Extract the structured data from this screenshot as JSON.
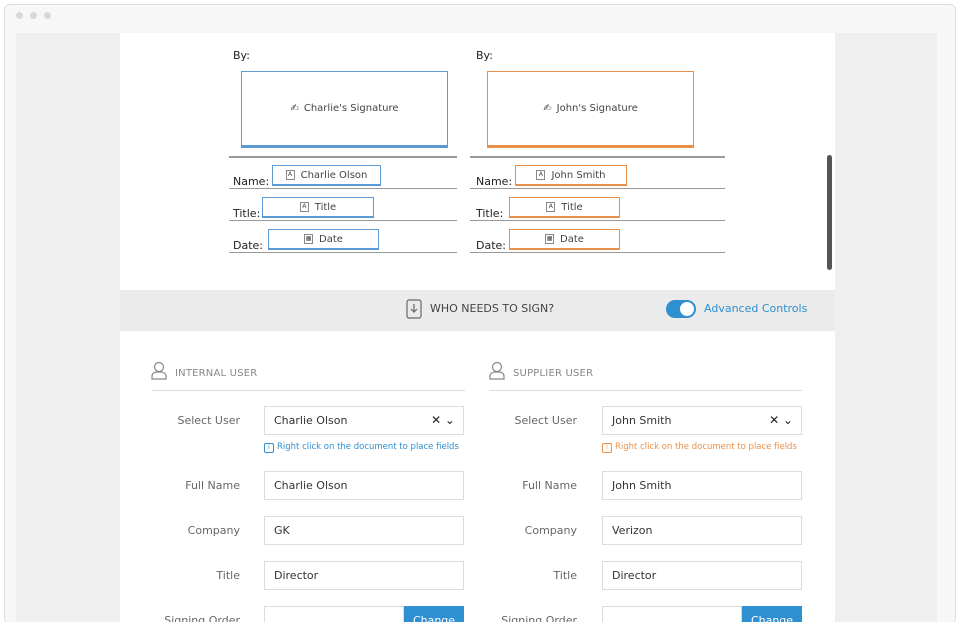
{
  "signature_blocks": [
    {
      "by": "By:",
      "signature": "Charlie's Signature",
      "fields": [
        {
          "label": "Name:",
          "value": "Charlie Olson"
        },
        {
          "label": "Title:",
          "value": "Title"
        },
        {
          "label": "Date:",
          "value": "Date"
        }
      ]
    },
    {
      "by": "By:",
      "signature": "John's Signature",
      "fields": [
        {
          "label": "Name:",
          "value": "John Smith"
        },
        {
          "label": "Title:",
          "value": "Title"
        },
        {
          "label": "Date:",
          "value": "Date"
        }
      ]
    }
  ],
  "section": {
    "heading": "WHO NEEDS TO SIGN?",
    "toggle_label": "Advanced Controls"
  },
  "users": [
    {
      "heading": "INTERNAL USER",
      "rows": [
        {
          "label": "Select User",
          "value": "Charlie Olson"
        },
        {
          "label": "Full Name",
          "value": "Charlie Olson"
        },
        {
          "label": "Company",
          "value": "GK"
        },
        {
          "label": "Title",
          "value": "Director"
        }
      ],
      "hint": "Right click on the document to place fields",
      "signing_order": {
        "label": "Signing Order",
        "button": "Change"
      }
    },
    {
      "heading": "SUPPLIER USER",
      "rows": [
        {
          "label": "Select User",
          "value": "John Smith"
        },
        {
          "label": "Full Name",
          "value": "John Smith"
        },
        {
          "label": "Company",
          "value": "Verizon"
        },
        {
          "label": "Title",
          "value": "Director"
        }
      ],
      "hint": "Right click on the document to place fields",
      "signing_order": {
        "label": "Signing Order",
        "button": "Change"
      }
    }
  ]
}
